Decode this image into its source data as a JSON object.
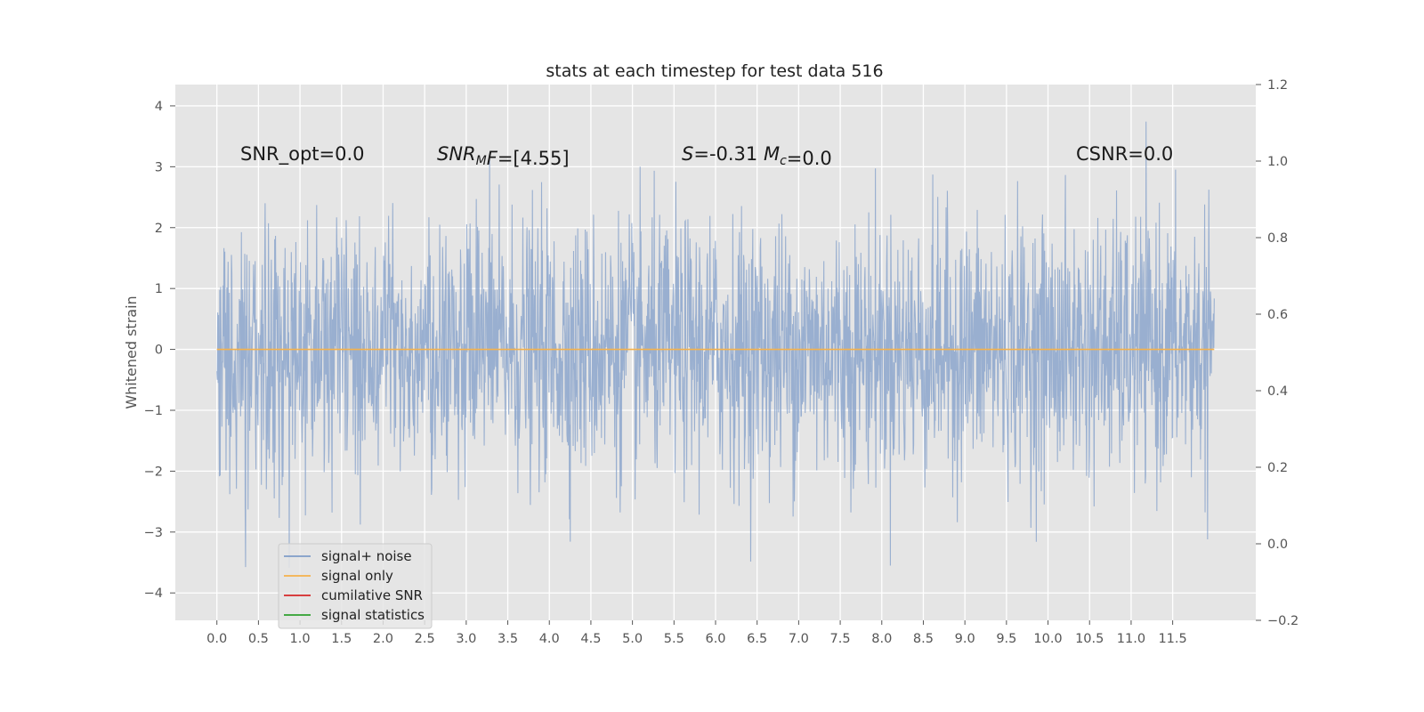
{
  "chart_data": {
    "type": "line",
    "title": "stats at each timestep for test data 516",
    "ylabel": "Whitened strain",
    "xlabel": "",
    "xlim": [
      -0.5,
      12.5
    ],
    "ylim": [
      -4.45,
      4.35
    ],
    "y2lim": [
      -0.2,
      1.2
    ],
    "x_ticks": [
      "0.0",
      "0.5",
      "1.0",
      "1.5",
      "2.0",
      "2.5",
      "3.0",
      "3.5",
      "4.0",
      "4.5",
      "5.0",
      "5.5",
      "6.0",
      "6.5",
      "7.0",
      "7.5",
      "8.0",
      "8.5",
      "9.0",
      "9.5",
      "10.0",
      "10.5",
      "11.0",
      "11.5"
    ],
    "y_ticks": [
      "−4",
      "−3",
      "−2",
      "−1",
      "0",
      "1",
      "2",
      "3",
      "4"
    ],
    "y2_ticks": [
      "−0.2",
      "0.0",
      "0.2",
      "0.4",
      "0.6",
      "0.8",
      "1.0",
      "1.2"
    ],
    "grid": true,
    "legend": {
      "position": "lower-left",
      "entries": [
        {
          "label": "signal+ noise",
          "color": "#7f9cc8"
        },
        {
          "label": "signal only",
          "color": "#f5b14a"
        },
        {
          "label": "cumilative SNR",
          "color": "#d62728"
        },
        {
          "label": "signal statistics",
          "color": "#2ca02c"
        }
      ]
    },
    "annotations": [
      {
        "parts": [
          {
            "t": "SNR_opt=0.0",
            "i": false
          }
        ]
      },
      {
        "parts": [
          {
            "t": "SNR",
            "i": true
          },
          {
            "t": "M",
            "i": true,
            "sub": true
          },
          {
            "t": "F",
            "i": true
          },
          {
            "t": "=[4.55]",
            "i": false
          }
        ]
      },
      {
        "parts": [
          {
            "t": "S",
            "i": true
          },
          {
            "t": "=-0.31  ",
            "i": false
          },
          {
            "t": "M",
            "i": true
          },
          {
            "t": "c",
            "i": true,
            "sub": true
          },
          {
            "t": "=0.0",
            "i": false
          }
        ]
      },
      {
        "parts": [
          {
            "t": "CSNR=0.0",
            "i": false
          }
        ]
      }
    ],
    "series": [
      {
        "name": "signal+ noise",
        "x_range": [
          0.0,
          12.0
        ],
        "y_range": [
          -4.05,
          3.98
        ],
        "note": "whitened noise time series, dense"
      },
      {
        "name": "signal only",
        "x_range": [
          0.0,
          12.0
        ],
        "values_constant": 0.0
      }
    ],
    "colors": {
      "plot_bg": "#e5e5e5",
      "grid": "#ffffff",
      "noise": "#7f9cc8",
      "signal": "#f5b14a"
    }
  }
}
